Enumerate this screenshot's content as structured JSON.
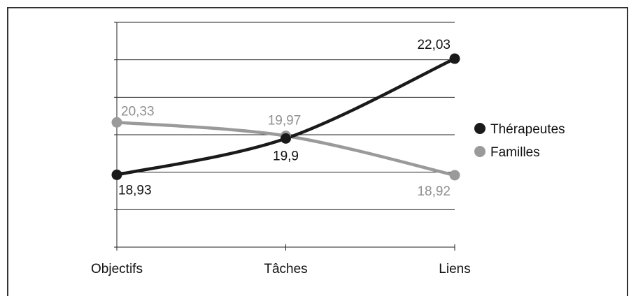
{
  "chart_data": {
    "type": "line",
    "categories": [
      "Objectifs",
      "Tâches",
      "Liens"
    ],
    "series": [
      {
        "name": "Thérapeutes",
        "values": [
          18.93,
          19.9,
          22.03
        ],
        "labels": [
          "18,93",
          "19,9",
          "22,03"
        ],
        "color": "#1a1a1a"
      },
      {
        "name": "Familles",
        "values": [
          20.33,
          19.97,
          18.92
        ],
        "labels": [
          "20,33",
          "19,97",
          "18,92"
        ],
        "color": "#9a9a9a"
      }
    ],
    "title": "",
    "xlabel": "",
    "ylabel": "",
    "ylim": [
      17,
      23
    ],
    "y_ticks_labeled": false,
    "grid": true,
    "legend_position": "right"
  }
}
